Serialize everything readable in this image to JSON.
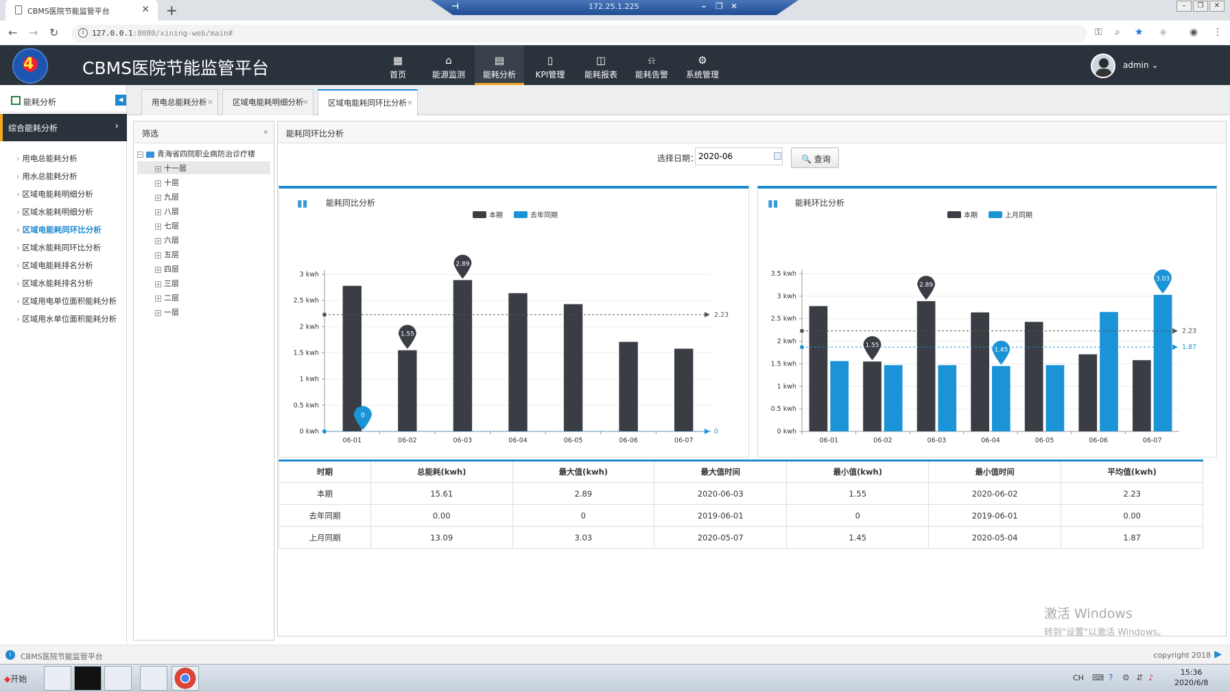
{
  "browser": {
    "tab_title": "CBMS医院节能监管平台",
    "remote_ip": "172.25.1.225",
    "url_host": "127.0.0.1",
    "url_rest": ":8080/xining-web/main#"
  },
  "header": {
    "app_title": "CBMS医院节能监管平台",
    "nav": [
      {
        "label": "首页",
        "icon": "grid-icon"
      },
      {
        "label": "能源监测",
        "icon": "monitor-icon"
      },
      {
        "label": "能耗分析",
        "icon": "analysis-icon"
      },
      {
        "label": "KPI管理",
        "icon": "document-icon"
      },
      {
        "label": "能耗报表",
        "icon": "report-icon"
      },
      {
        "label": "能耗告警",
        "icon": "alarm-icon"
      },
      {
        "label": "系统管理",
        "icon": "settings-icon"
      }
    ],
    "active_nav": "能耗分析",
    "user": "admin"
  },
  "sidebar": {
    "header": "能耗分析",
    "section": "综合能耗分析",
    "items": [
      "用电总能耗分析",
      "用水总能耗分析",
      "区域电能耗明细分析",
      "区域水能耗明细分析",
      "区域电能耗同环比分析",
      "区域水能耗同环比分析",
      "区域电能耗排名分析",
      "区域水能耗排名分析",
      "区域用电单位面积能耗分析",
      "区域用水单位面积能耗分析"
    ],
    "active_item": "区域电能耗同环比分析"
  },
  "tabs": [
    "用电总能耗分析",
    "区域电能耗明细分析",
    "区域电能耗同环比分析"
  ],
  "filter": {
    "title": "筛选",
    "root": "青海省四院职业病防治诊疗楼",
    "floors": [
      "十一层",
      "十层",
      "九层",
      "八层",
      "七层",
      "六层",
      "五层",
      "四层",
      "三层",
      "二层",
      "一层"
    ]
  },
  "main": {
    "title": "能耗同环比分析",
    "date_label": "选择日期：",
    "date_value": "2020-06",
    "query_label": "查询"
  },
  "colors": {
    "current": "#3a3d44",
    "compare": "#1b94d7",
    "accent": "#1e88d0",
    "nav_active_underline": "#f5a623"
  },
  "chart_data": [
    {
      "type": "bar",
      "title": "能耗同比分析",
      "categories": [
        "06-01",
        "06-02",
        "06-03",
        "06-04",
        "06-05",
        "06-06",
        "06-07"
      ],
      "series": [
        {
          "name": "本期",
          "values": [
            2.78,
            1.55,
            2.89,
            2.64,
            2.43,
            1.71,
            1.58
          ]
        },
        {
          "name": "去年同期",
          "values": [
            0,
            0,
            0,
            0,
            0,
            0,
            0
          ]
        }
      ],
      "y_ticks": [
        "0 kwh",
        "0.5 kwh",
        "1 kwh",
        "1.5 kwh",
        "2 kwh",
        "2.5 kwh",
        "3 kwh"
      ],
      "ylim": [
        0,
        3
      ],
      "markers": [
        {
          "series": 0,
          "index": 2,
          "label": "2.89"
        },
        {
          "series": 0,
          "index": 1,
          "label": "1.55"
        },
        {
          "series": 1,
          "index": 0,
          "label": "0"
        }
      ],
      "avg_lines": [
        {
          "series": 0,
          "value": 2.23,
          "label": "2.23"
        },
        {
          "series": 1,
          "value": 0,
          "label": "0"
        }
      ],
      "legend": "top-center"
    },
    {
      "type": "bar",
      "title": "能耗环比分析",
      "categories": [
        "06-01",
        "06-02",
        "06-03",
        "06-04",
        "06-05",
        "06-06",
        "06-07"
      ],
      "series": [
        {
          "name": "本期",
          "values": [
            2.78,
            1.55,
            2.89,
            2.64,
            2.43,
            1.71,
            1.58
          ]
        },
        {
          "name": "上月同期",
          "values": [
            1.56,
            1.47,
            1.47,
            1.45,
            1.47,
            2.65,
            3.03
          ]
        }
      ],
      "y_ticks": [
        "0 kwh",
        "0.5 kwh",
        "1 kwh",
        "1.5 kwh",
        "2 kwh",
        "2.5 kwh",
        "3 kwh",
        "3.5 kwh"
      ],
      "ylim": [
        0,
        3.5
      ],
      "markers": [
        {
          "series": 0,
          "index": 2,
          "label": "2.89"
        },
        {
          "series": 0,
          "index": 1,
          "label": "1.55"
        },
        {
          "series": 1,
          "index": 3,
          "label": "1.45"
        },
        {
          "series": 1,
          "index": 6,
          "label": "3.03"
        }
      ],
      "avg_lines": [
        {
          "series": 0,
          "value": 2.23,
          "label": "2.23"
        },
        {
          "series": 1,
          "value": 1.87,
          "label": "1.87"
        }
      ],
      "legend": "top-center"
    }
  ],
  "table": {
    "headers": [
      "时期",
      "总能耗(kwh)",
      "最大值(kwh)",
      "最大值时间",
      "最小值(kwh)",
      "最小值时间",
      "平均值(kwh)"
    ],
    "rows": [
      [
        "本期",
        "15.61",
        "2.89",
        "2020-06-03",
        "1.55",
        "2020-06-02",
        "2.23"
      ],
      [
        "去年同期",
        "0.00",
        "0",
        "2019-06-01",
        "0",
        "2019-06-01",
        "0.00"
      ],
      [
        "上月同期",
        "13.09",
        "3.03",
        "2020-05-07",
        "1.45",
        "2020-05-04",
        "1.87"
      ]
    ]
  },
  "watermark": {
    "line1": "激活 Windows",
    "line2": "转到\"设置\"以激活 Windows。"
  },
  "status": {
    "left": "CBMS医院节能监管平台",
    "right": "copyright 2018"
  },
  "taskbar": {
    "start": "开始",
    "lang": "CH",
    "time": "15:36",
    "date": "2020/6/8"
  }
}
